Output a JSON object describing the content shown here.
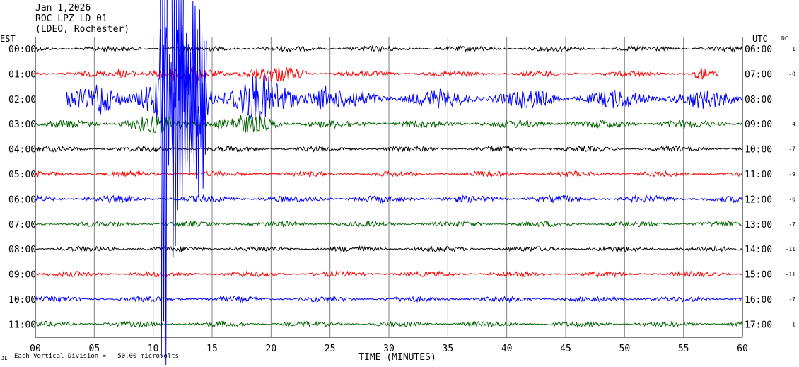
{
  "header": {
    "date": "Jan 1,2026",
    "station": "ROC LPZ LD 01",
    "network": "(LDEO, Rochester)"
  },
  "left_zone_label": "EST",
  "right_zone_label": "UTC",
  "dc_label": "DC",
  "footer_mark": "JL",
  "footer_note": "Each Vertical Division =   50.00 microvolts",
  "chart_data": {
    "type": "line",
    "title": "",
    "xlabel": "TIME (MINUTES)",
    "xlim": [
      0,
      60
    ],
    "x_ticks": [
      "00",
      "05",
      "10",
      "15",
      "20",
      "25",
      "30",
      "35",
      "40",
      "45",
      "50",
      "55",
      "60"
    ],
    "grid": "vertical lines every 5 minutes",
    "trace_colors": [
      "#000000",
      "#ff0000",
      "#0000ff",
      "#006400"
    ],
    "traces": [
      {
        "est": "00:00",
        "utc": "06:00",
        "dc": "1",
        "color": "#000000",
        "start_min": 0.0,
        "end_min": 60.0,
        "amp": 4
      },
      {
        "est": "01:00",
        "utc": "07:00",
        "dc": "-0",
        "color": "#ff0000",
        "start_min": 0.0,
        "end_min": 58.0,
        "amp": 4
      },
      {
        "est": "02:00",
        "utc": "08:00",
        "dc": "",
        "color": "#0000ff",
        "start_min": 2.6,
        "end_min": 60.0,
        "amp": 14
      },
      {
        "est": "03:00",
        "utc": "09:00",
        "dc": "4",
        "color": "#006400",
        "start_min": 0.0,
        "end_min": 60.0,
        "amp": 6
      },
      {
        "est": "04:00",
        "utc": "10:00",
        "dc": "-7",
        "color": "#000000",
        "start_min": 0.0,
        "end_min": 60.0,
        "amp": 4
      },
      {
        "est": "05:00",
        "utc": "11:00",
        "dc": "-9",
        "color": "#ff0000",
        "start_min": 0.0,
        "end_min": 60.0,
        "amp": 4
      },
      {
        "est": "06:00",
        "utc": "12:00",
        "dc": "-6",
        "color": "#0000ff",
        "start_min": 0.0,
        "end_min": 60.0,
        "amp": 5
      },
      {
        "est": "07:00",
        "utc": "13:00",
        "dc": "-7",
        "color": "#006400",
        "start_min": 0.0,
        "end_min": 60.0,
        "amp": 4
      },
      {
        "est": "08:00",
        "utc": "14:00",
        "dc": "-11",
        "color": "#000000",
        "start_min": 0.0,
        "end_min": 60.0,
        "amp": 4
      },
      {
        "est": "09:00",
        "utc": "15:00",
        "dc": "-11",
        "color": "#ff0000",
        "start_min": 0.0,
        "end_min": 60.0,
        "amp": 4
      },
      {
        "est": "10:00",
        "utc": "16:00",
        "dc": "-7",
        "color": "#0000ff",
        "start_min": 0.0,
        "end_min": 60.0,
        "amp": 4
      },
      {
        "est": "11:00",
        "utc": "17:00",
        "dc": "1",
        "color": "#006400",
        "start_min": 0.0,
        "end_min": 60.0,
        "amp": 4
      }
    ],
    "events": [
      {
        "trace": "02:00",
        "start_min": 5.0,
        "end_min": 25.0,
        "amp_factor": 2.5
      },
      {
        "trace": "02:00",
        "start_min": 10.5,
        "end_min": 15.0,
        "amp_factor": 3.5
      },
      {
        "trace": "01:00",
        "start_min": 7.0,
        "end_min": 23.0,
        "amp_factor": 3.0
      },
      {
        "trace": "01:00",
        "start_min": 56.0,
        "end_min": 57.0,
        "amp_factor": 3.0
      },
      {
        "trace": "03:00",
        "start_min": 7.0,
        "end_min": 21.0,
        "amp_factor": 2.2
      }
    ],
    "large_event": {
      "trace": "02:00",
      "color": "#0000ff",
      "segments_min": [
        [
          10.6,
          11.2
        ],
        [
          11.6,
          12.6
        ],
        [
          12.6,
          14.6
        ]
      ],
      "peak_amplitude_off_scale": true
    }
  }
}
